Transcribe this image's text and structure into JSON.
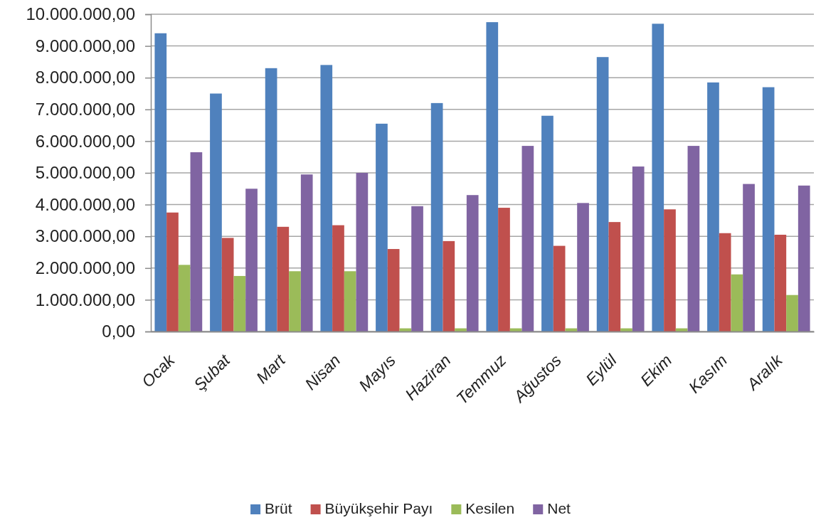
{
  "chart_data": {
    "type": "bar",
    "categories": [
      "Ocak",
      "Şubat",
      "Mart",
      "Nisan",
      "Mayıs",
      "Haziran",
      "Temmuz",
      "Ağustos",
      "Eylül",
      "Ekim",
      "Kasım",
      "Aralık"
    ],
    "series": [
      {
        "name": "Brüt",
        "color": "#4f81bd",
        "values": [
          9400000,
          7500000,
          8300000,
          8400000,
          6550000,
          7200000,
          9750000,
          6800000,
          8650000,
          9700000,
          7850000,
          7700000
        ]
      },
      {
        "name": "Büyükşehir Payı",
        "color": "#c0504d",
        "values": [
          3750000,
          2950000,
          3300000,
          3350000,
          2600000,
          2850000,
          3900000,
          2700000,
          3450000,
          3850000,
          3100000,
          3050000
        ]
      },
      {
        "name": "Kesilen",
        "color": "#9bbb59",
        "values": [
          2100000,
          1750000,
          1900000,
          1900000,
          100000,
          100000,
          100000,
          100000,
          100000,
          100000,
          1800000,
          1150000
        ]
      },
      {
        "name": "Net",
        "color": "#8064a2",
        "values": [
          5650000,
          4500000,
          4950000,
          5000000,
          3950000,
          4300000,
          5850000,
          4050000,
          5200000,
          5850000,
          4650000,
          4600000
        ]
      }
    ],
    "ylim": [
      0,
      10000000
    ],
    "yticks": [
      {
        "value": 0,
        "label": "0,00"
      },
      {
        "value": 1000000,
        "label": "1.000.000,00"
      },
      {
        "value": 2000000,
        "label": "2.000.000,00"
      },
      {
        "value": 3000000,
        "label": "3.000.000,00"
      },
      {
        "value": 4000000,
        "label": "4.000.000,00"
      },
      {
        "value": 5000000,
        "label": "5.000.000,00"
      },
      {
        "value": 6000000,
        "label": "6.000.000,00"
      },
      {
        "value": 7000000,
        "label": "7.000.000,00"
      },
      {
        "value": 8000000,
        "label": "8.000.000,00"
      },
      {
        "value": 9000000,
        "label": "9.000.000,00"
      },
      {
        "value": 10000000,
        "label": "10.000.000,00"
      }
    ],
    "grid": "y",
    "legend": "bottom"
  }
}
